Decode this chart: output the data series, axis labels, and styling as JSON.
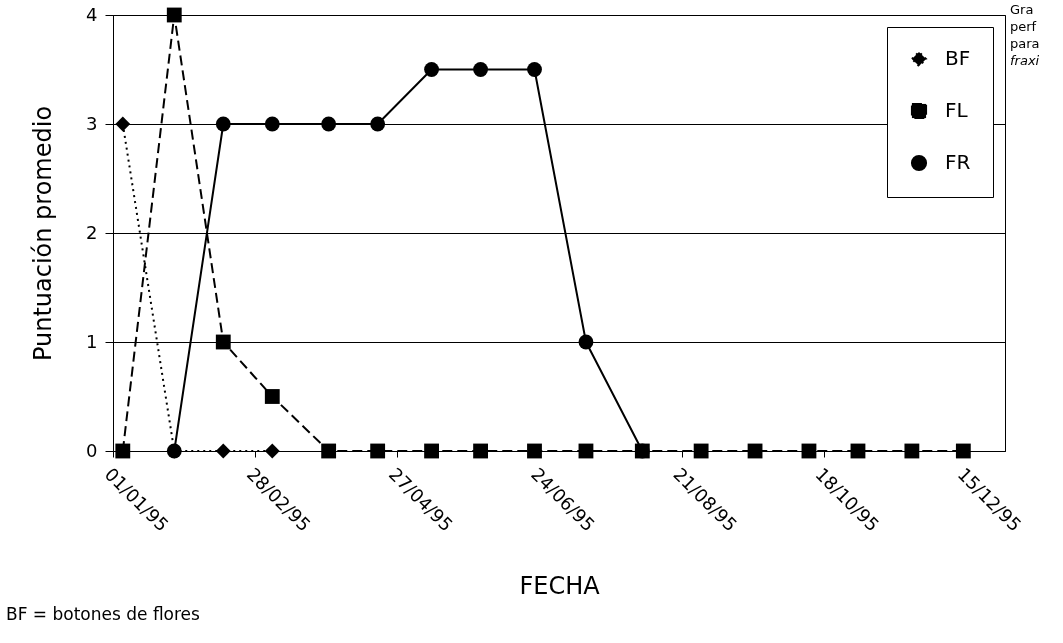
{
  "chart_data": {
    "type": "line",
    "x": [
      "1995-01-05",
      "1995-01-26",
      "1995-02-15",
      "1995-03-07",
      "1995-03-30",
      "1995-04-19",
      "1995-05-11",
      "1995-05-31",
      "1995-06-22",
      "1995-07-13",
      "1995-08-05",
      "1995-08-29",
      "1995-09-20",
      "1995-10-12",
      "1995-11-01",
      "1995-11-23",
      "1995-12-14"
    ],
    "series": [
      {
        "name": "BF",
        "color": "#000000",
        "marker": "diamond",
        "line_style": "dotted",
        "values": [
          3,
          0,
          0,
          0,
          null,
          null,
          null,
          null,
          null,
          null,
          null,
          null,
          null,
          null,
          null,
          null,
          null
        ]
      },
      {
        "name": "FL",
        "color": "#000000",
        "marker": "square",
        "line_style": "dashed",
        "values": [
          0,
          4,
          1,
          0.5,
          0,
          0,
          0,
          0,
          0,
          0,
          0,
          0,
          0,
          0,
          0,
          0,
          0
        ]
      },
      {
        "name": "FR",
        "color": "#000000",
        "marker": "circle",
        "line_style": "solid",
        "values": [
          null,
          0,
          3,
          3,
          3,
          3,
          3.5,
          3.5,
          3.5,
          1,
          0,
          null,
          null,
          null,
          null,
          null,
          null
        ]
      }
    ],
    "xlabel": "FECHA",
    "ylabel": "Puntuación promedio",
    "xlim": [
      "1995-01-01",
      "1995-12-31"
    ],
    "xticks": [
      {
        "value": "1995-01-01",
        "label": "01/01/95"
      },
      {
        "value": "1995-02-28",
        "label": "28/02/95"
      },
      {
        "value": "1995-04-27",
        "label": "27/04/95"
      },
      {
        "value": "1995-06-24",
        "label": "24/06/95"
      },
      {
        "value": "1995-08-21",
        "label": "21/08/95"
      },
      {
        "value": "1995-10-18",
        "label": "18/10/95"
      },
      {
        "value": "1995-12-15",
        "label": "15/12/95"
      }
    ],
    "ylim": [
      0,
      4
    ],
    "yticks": [
      0,
      1,
      2,
      3,
      4
    ],
    "grid": "y",
    "legend": "top right",
    "annotations": [
      "BF = botones de flores",
      "Gra",
      "perf",
      "para",
      "fraxi"
    ]
  }
}
